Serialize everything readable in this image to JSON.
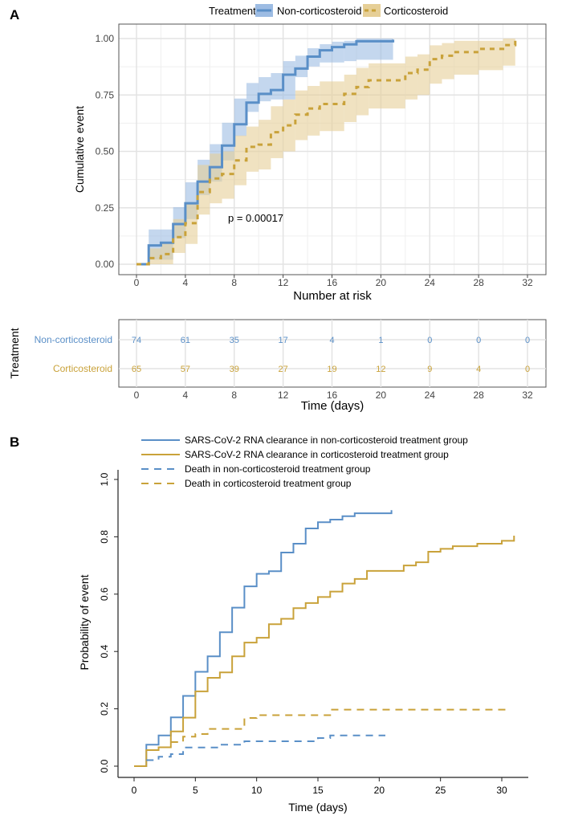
{
  "colors": {
    "non_corticosteroid": "#5a8fc7",
    "corticosteroid": "#c9a23a",
    "band_non": "#9dbce3",
    "band_cort": "#e6cf97",
    "grid": "#e3e3e3"
  },
  "chart_data": [
    {
      "panel": "A",
      "type": "line",
      "step": true,
      "legend": {
        "title": "Treatment",
        "placement": "top",
        "entries": [
          "Non-corticosteroid",
          "Corticosteroid"
        ]
      },
      "ylabel": "Cumulative event",
      "xlabel": "Number at risk",
      "xlim": [
        -1,
        33
      ],
      "ylim": [
        -0.03,
        1.05
      ],
      "xticks": [
        0,
        4,
        8,
        12,
        16,
        20,
        24,
        28,
        32
      ],
      "yticks": [
        "0.00",
        "0.25",
        "0.50",
        "0.75",
        "1.00"
      ],
      "grid": true,
      "annotation": "p = 0.00017",
      "series": [
        {
          "name": "Non-corticosteroid",
          "style": "solid",
          "with_ci": true,
          "points": [
            [
              0,
              0,
              0,
              0
            ],
            [
              1,
              0.083,
              0.02,
              0.154
            ],
            [
              2,
              0.095,
              0.02,
              0.154
            ],
            [
              3,
              0.178,
              0.116,
              0.253
            ],
            [
              4,
              0.27,
              0.2,
              0.363
            ],
            [
              5,
              0.366,
              0.306,
              0.463
            ],
            [
              6,
              0.43,
              0.366,
              0.532
            ],
            [
              7,
              0.526,
              0.46,
              0.627
            ],
            [
              8,
              0.62,
              0.568,
              0.734
            ],
            [
              9,
              0.716,
              0.675,
              0.803
            ],
            [
              10,
              0.755,
              0.722,
              0.829
            ],
            [
              11,
              0.772,
              0.73,
              0.847
            ],
            [
              12,
              0.84,
              0.73,
              0.9
            ],
            [
              13,
              0.867,
              0.829,
              0.924
            ],
            [
              14,
              0.92,
              0.876,
              0.957
            ],
            [
              15,
              0.948,
              0.894,
              0.975
            ],
            [
              16,
              0.962,
              0.894,
              0.986
            ],
            [
              17,
              0.974,
              0.9,
              0.99
            ],
            [
              18,
              0.988,
              0.906,
              1.0
            ],
            [
              21,
              0.995,
              0.906,
              1.0
            ]
          ]
        },
        {
          "name": "Corticosteroid",
          "style": "dashed",
          "with_ci": true,
          "points": [
            [
              0,
              0,
              0,
              0
            ],
            [
              1,
              0.027,
              0,
              0.07
            ],
            [
              2,
              0.045,
              0,
              0.1
            ],
            [
              3,
              0.12,
              0.05,
              0.2
            ],
            [
              4,
              0.182,
              0.09,
              0.265
            ],
            [
              5,
              0.32,
              0.22,
              0.44
            ],
            [
              6,
              0.38,
              0.27,
              0.49
            ],
            [
              7,
              0.4,
              0.29,
              0.5
            ],
            [
              8,
              0.46,
              0.35,
              0.57
            ],
            [
              9,
              0.52,
              0.41,
              0.61
            ],
            [
              10,
              0.53,
              0.42,
              0.64
            ],
            [
              11,
              0.585,
              0.47,
              0.7
            ],
            [
              12,
              0.615,
              0.5,
              0.73
            ],
            [
              13,
              0.663,
              0.55,
              0.77
            ],
            [
              14,
              0.69,
              0.57,
              0.79
            ],
            [
              15,
              0.71,
              0.59,
              0.81
            ],
            [
              17,
              0.755,
              0.63,
              0.84
            ],
            [
              18,
              0.785,
              0.66,
              0.87
            ],
            [
              19,
              0.815,
              0.69,
              0.89
            ],
            [
              22,
              0.847,
              0.73,
              0.92
            ],
            [
              23,
              0.862,
              0.75,
              0.93
            ],
            [
              24,
              0.909,
              0.8,
              0.97
            ],
            [
              25,
              0.924,
              0.82,
              0.98
            ],
            [
              26,
              0.94,
              0.84,
              0.99
            ],
            [
              28,
              0.954,
              0.86,
              0.99
            ],
            [
              30,
              0.971,
              0.88,
              1.0
            ],
            [
              31,
              0.993,
              0.88,
              1.0
            ]
          ]
        }
      ],
      "risk_table": {
        "ylabel": "Treatment",
        "xlabel": "Time (days)",
        "times": [
          0,
          4,
          8,
          12,
          16,
          20,
          24,
          28,
          32
        ],
        "rows": [
          {
            "label": "Non-corticosteroid",
            "counts": [
              "74",
              "61",
              "35",
              "17",
              "4",
              "1",
              "0",
              "0",
              "0"
            ]
          },
          {
            "label": "Corticosteroid",
            "counts": [
              "65",
              "57",
              "39",
              "27",
              "19",
              "12",
              "9",
              "4",
              "0"
            ]
          }
        ]
      }
    },
    {
      "panel": "B",
      "type": "line",
      "step": true,
      "ylabel": "Probability of event",
      "xlabel": "Time (days)",
      "xlim": [
        0,
        31
      ],
      "ylim": [
        0,
        1.0
      ],
      "xticks": [
        "0",
        "5",
        "10",
        "15",
        "20",
        "25",
        "30"
      ],
      "yticks": [
        "0.0",
        "0.2",
        "0.4",
        "0.6",
        "0.8",
        "1.0"
      ],
      "grid": false,
      "legend": {
        "placement": "top-left"
      },
      "series": [
        {
          "name": "SARS-CoV-2 RNA clearance in non-corticosteroid treatment group",
          "group": "non",
          "style": "solid",
          "points": [
            [
              0,
              0
            ],
            [
              1,
              0.075
            ],
            [
              2,
              0.107
            ],
            [
              3,
              0.17
            ],
            [
              4,
              0.245
            ],
            [
              5,
              0.329
            ],
            [
              6,
              0.383
            ],
            [
              7,
              0.467
            ],
            [
              8,
              0.553
            ],
            [
              9,
              0.627
            ],
            [
              10,
              0.671
            ],
            [
              11,
              0.68
            ],
            [
              12,
              0.745
            ],
            [
              13,
              0.776
            ],
            [
              14,
              0.829
            ],
            [
              15,
              0.851
            ],
            [
              16,
              0.86
            ],
            [
              17,
              0.872
            ],
            [
              18,
              0.882
            ],
            [
              21,
              0.893
            ]
          ]
        },
        {
          "name": "SARS-CoV-2 RNA clearance in corticosteroid treatment group",
          "group": "cort",
          "style": "solid",
          "points": [
            [
              0,
              0
            ],
            [
              1,
              0.056
            ],
            [
              2,
              0.066
            ],
            [
              3,
              0.121
            ],
            [
              4,
              0.169
            ],
            [
              5,
              0.261
            ],
            [
              6,
              0.308
            ],
            [
              7,
              0.327
            ],
            [
              8,
              0.383
            ],
            [
              9,
              0.431
            ],
            [
              10,
              0.448
            ],
            [
              11,
              0.495
            ],
            [
              12,
              0.514
            ],
            [
              13,
              0.551
            ],
            [
              14,
              0.569
            ],
            [
              15,
              0.59
            ],
            [
              16,
              0.609
            ],
            [
              17,
              0.637
            ],
            [
              18,
              0.653
            ],
            [
              19,
              0.681
            ],
            [
              22,
              0.7
            ],
            [
              23,
              0.711
            ],
            [
              24,
              0.748
            ],
            [
              25,
              0.758
            ],
            [
              26,
              0.767
            ],
            [
              28,
              0.776
            ],
            [
              30,
              0.786
            ],
            [
              31,
              0.804
            ]
          ]
        },
        {
          "name": "Death in non-corticosteroid treatment group",
          "group": "non",
          "style": "dashed",
          "points": [
            [
              1,
              0.021
            ],
            [
              2,
              0.033
            ],
            [
              3,
              0.042
            ],
            [
              4,
              0.065
            ],
            [
              7,
              0.075
            ],
            [
              9,
              0.087
            ],
            [
              15,
              0.098
            ],
            [
              16,
              0.107
            ],
            [
              20.5,
              0.107
            ]
          ]
        },
        {
          "name": "Death in corticosteroid treatment group",
          "group": "cort",
          "style": "dashed",
          "points": [
            [
              3,
              0.084
            ],
            [
              4,
              0.103
            ],
            [
              5,
              0.112
            ],
            [
              6,
              0.13
            ],
            [
              9,
              0.168
            ],
            [
              10,
              0.178
            ],
            [
              16,
              0.197
            ],
            [
              30.5,
              0.197
            ]
          ]
        }
      ]
    }
  ]
}
